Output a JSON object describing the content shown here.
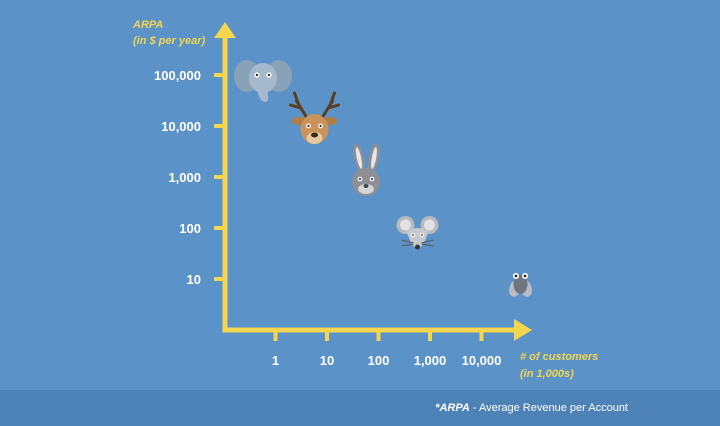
{
  "chart_data": {
    "type": "scatter",
    "ylabel": [
      "ARPA",
      "(in $ per year)"
    ],
    "xlabel": [
      "# of customers",
      "(in 1,000s)"
    ],
    "scale": "log",
    "x_ticks": [
      "1",
      "10",
      "100",
      "1,000",
      "10,000"
    ],
    "y_ticks": [
      "10",
      "100",
      "1,000",
      "10,000",
      "100,000"
    ],
    "xlim": [
      0.1,
      100000
    ],
    "ylim": [
      1,
      1000000
    ],
    "grid": false,
    "points": [
      {
        "icon": "elephant-icon",
        "x": 0.1,
        "y": 100000
      },
      {
        "icon": "deer-icon",
        "x": 1,
        "y": 10000
      },
      {
        "icon": "rabbit-icon",
        "x": 10,
        "y": 1000
      },
      {
        "icon": "mouse-icon",
        "x": 100,
        "y": 100
      },
      {
        "icon": "fly-icon",
        "x": 10000,
        "y": 10
      }
    ],
    "colors": {
      "background": "#5b93c8",
      "axis": "#f3d54e",
      "tick_text": "#ffffff",
      "footer": "#4d82b6"
    }
  },
  "footnote": {
    "term": "*ARPA",
    "definition": " - Average Revenue per Account"
  }
}
